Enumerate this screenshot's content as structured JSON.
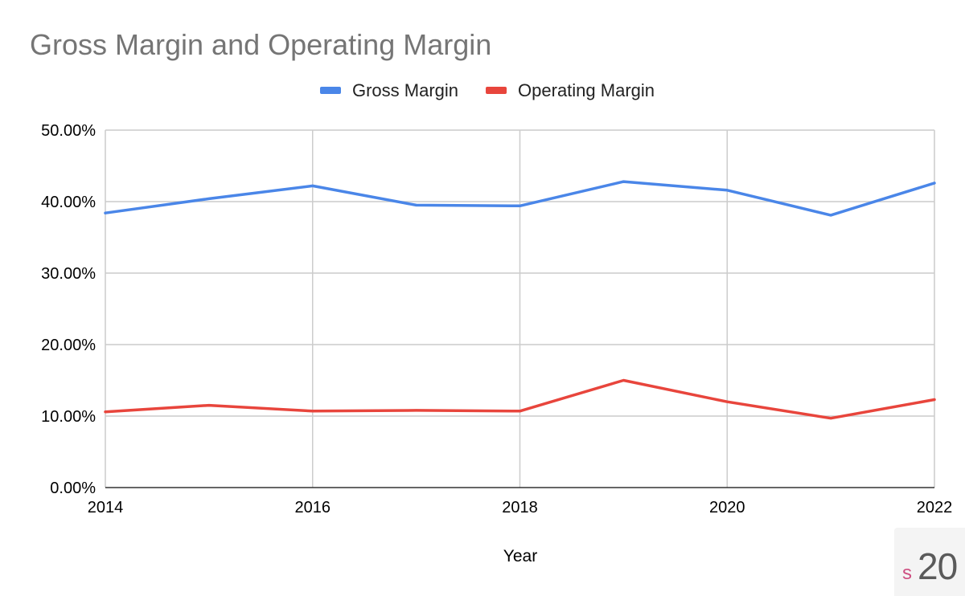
{
  "chart_data": {
    "type": "line",
    "title": "Gross Margin and Operating Margin",
    "xlabel": "Year",
    "ylabel": "",
    "x": [
      2014,
      2015,
      2016,
      2017,
      2018,
      2019,
      2020,
      2021,
      2022
    ],
    "xticks": [
      2014,
      2016,
      2018,
      2020,
      2022
    ],
    "xlim": [
      2014,
      2022
    ],
    "ylim": [
      0,
      0.5
    ],
    "yticks": [
      0,
      0.1,
      0.2,
      0.3,
      0.4,
      0.5
    ],
    "ytick_labels": [
      "0.00%",
      "10.00%",
      "20.00%",
      "30.00%",
      "40.00%",
      "50.00%"
    ],
    "grid": true,
    "legend_position": "top",
    "series": [
      {
        "name": "Gross Margin",
        "color": "#4a86e8",
        "values": [
          0.384,
          0.404,
          0.422,
          0.395,
          0.394,
          0.428,
          0.416,
          0.381,
          0.426
        ]
      },
      {
        "name": "Operating Margin",
        "color": "#e8453c",
        "values": [
          0.106,
          0.115,
          0.107,
          0.108,
          0.107,
          0.15,
          0.12,
          0.097,
          0.123
        ]
      }
    ]
  },
  "badge": {
    "prefix": "s",
    "number": "20"
  }
}
